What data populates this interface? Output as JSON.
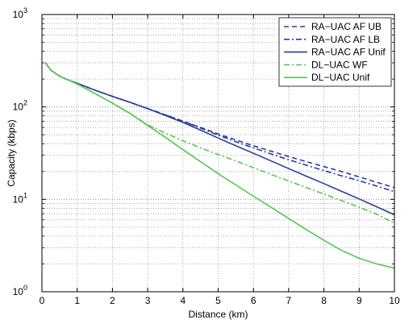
{
  "chart_data": {
    "type": "line",
    "xlabel": "Distance (km)",
    "ylabel": "Capacity (kbps)",
    "xlim": [
      0,
      10
    ],
    "ylim": [
      1,
      1000
    ],
    "yscale": "log",
    "grid": true,
    "legend_position": "top-right",
    "x_ticks": [
      "0",
      "1",
      "2",
      "3",
      "4",
      "5",
      "6",
      "7",
      "8",
      "9",
      "10"
    ],
    "y_ticks": [
      {
        "base": "10",
        "exp": "0"
      },
      {
        "base": "10",
        "exp": "1"
      },
      {
        "base": "10",
        "exp": "2"
      },
      {
        "base": "10",
        "exp": "3"
      }
    ],
    "series": [
      {
        "name": "RA−UAC AF UB",
        "color": "#2b3d9a",
        "dash": "dash",
        "x": [
          0.1,
          0.25,
          0.5,
          0.75,
          1,
          1.5,
          2,
          2.5,
          3,
          3.5,
          4,
          4.5,
          5,
          5.5,
          6,
          6.5,
          7,
          7.5,
          8,
          8.5,
          9,
          9.5,
          10
        ],
        "y": [
          300,
          250,
          215,
          195,
          180,
          152,
          130,
          112,
          96,
          82,
          70,
          60,
          51,
          44,
          38,
          33.2,
          29,
          25.6,
          22.6,
          20,
          17.5,
          15.3,
          13.4
        ]
      },
      {
        "name": "RA−UAC AF LB",
        "color": "#2b3d9a",
        "dash": "dashdot",
        "x": [
          0.1,
          0.25,
          0.5,
          0.75,
          1,
          1.5,
          2,
          2.5,
          3,
          3.5,
          4,
          4.5,
          5,
          5.5,
          6,
          6.5,
          7,
          7.5,
          8,
          8.5,
          9,
          9.5,
          10
        ],
        "y": [
          300,
          250,
          215,
          195,
          180,
          152,
          130,
          112,
          96,
          82,
          70,
          59,
          49.5,
          42,
          36,
          31,
          26.8,
          23.4,
          20.5,
          18,
          15.9,
          13.9,
          12.1
        ]
      },
      {
        "name": "RA−UAC AF Unif",
        "color": "#2b3d9a",
        "dash": "solid",
        "x": [
          0.1,
          0.25,
          0.5,
          0.75,
          1,
          1.5,
          2,
          2.5,
          3,
          3.5,
          4,
          4.5,
          5,
          5.5,
          6,
          6.5,
          7,
          7.5,
          8,
          8.5,
          9,
          9.5,
          10
        ],
        "y": [
          300,
          250,
          215,
          195,
          180,
          152,
          130,
          112,
          96,
          81,
          68,
          56,
          46,
          38,
          31.5,
          26,
          21.5,
          17.8,
          14.8,
          12.2,
          10.1,
          8.3,
          6.8
        ]
      },
      {
        "name": "DL−UAC WF",
        "color": "#5cc25a",
        "dash": "dashdot",
        "x": [
          0.1,
          0.25,
          0.5,
          0.75,
          1,
          1.5,
          2,
          2.5,
          3,
          3.5,
          4,
          4.5,
          5,
          5.5,
          6,
          6.5,
          7,
          7.5,
          8,
          8.5,
          9,
          9.5,
          10
        ],
        "y": [
          300,
          250,
          215,
          195,
          177,
          140,
          110,
          85,
          64,
          52,
          43,
          36,
          30.5,
          26,
          22,
          18.6,
          15.8,
          13.4,
          11.4,
          9.7,
          8.2,
          6.9,
          5.5
        ]
      },
      {
        "name": "DL−UAC Unif",
        "color": "#5cc25a",
        "dash": "solid",
        "x": [
          0.1,
          0.25,
          0.5,
          0.75,
          1,
          1.5,
          2,
          2.5,
          3,
          3.5,
          4,
          4.5,
          5,
          5.5,
          6,
          6.5,
          7,
          7.5,
          8,
          8.5,
          9,
          9.5,
          10
        ],
        "y": [
          300,
          250,
          215,
          195,
          177,
          140,
          110,
          85,
          63,
          47,
          34.5,
          25.5,
          19,
          14.3,
          10.8,
          8.2,
          6.2,
          4.7,
          3.6,
          2.8,
          2.3,
          2.0,
          1.8
        ]
      }
    ]
  }
}
